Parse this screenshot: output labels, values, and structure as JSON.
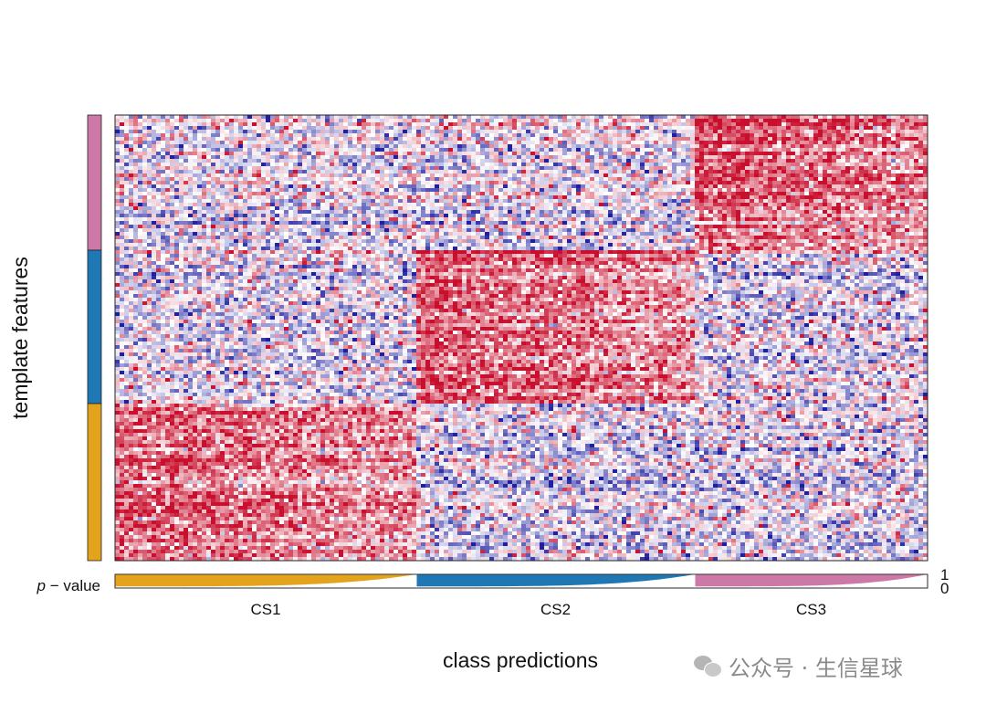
{
  "chart_data": {
    "type": "heatmap",
    "title": "",
    "xlabel": "class predictions",
    "ylabel": "template features",
    "classes": [
      "CS1",
      "CS2",
      "CS3"
    ],
    "class_colors": {
      "CS1": "#e3a31c",
      "CS2": "#1f77b4",
      "CS3": "#cc79a7"
    },
    "sample_fraction": [
      0.368,
      0.343,
      0.289
    ],
    "feature_fraction": [
      0.3,
      0.35,
      0.35
    ],
    "feature_group_order_top_to_bottom": [
      "CS3",
      "CS2",
      "CS1"
    ],
    "colorscale": {
      "low": "#1f1fa0",
      "mid": "#ffffff",
      "high": "#c8102e"
    },
    "pvalue_bar": {
      "label_prefix": "p",
      "label_suffix": " − value",
      "max_label": "1",
      "min_label": "0"
    }
  }
}
